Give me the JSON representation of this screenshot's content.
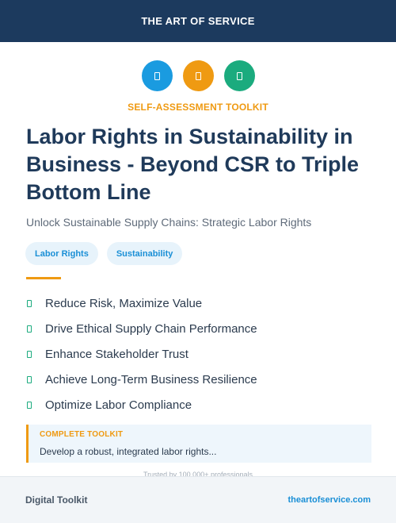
{
  "header": {
    "brand": "THE ART OF SERVICE"
  },
  "icons": [
    {
      "name": "document-icon",
      "color": "#1a9be0"
    },
    {
      "name": "document-icon",
      "color": "#ef9a12"
    },
    {
      "name": "document-icon",
      "color": "#1bab7e"
    }
  ],
  "kicker": "SELF-ASSESSMENT TOOLKIT",
  "title": "Labor Rights in Sustainability in Business - Beyond CSR to Triple Bottom Line",
  "subtitle": "Unlock Sustainable Supply Chains: Strategic Labor Rights",
  "tags": [
    "Labor Rights",
    "Sustainability"
  ],
  "benefits": [
    "Reduce Risk, Maximize Value",
    "Drive Ethical Supply Chain Performance",
    "Enhance Stakeholder Trust",
    "Achieve Long-Term Business Resilience",
    "Optimize Labor Compliance"
  ],
  "callout": {
    "label": "COMPLETE TOOLKIT",
    "text": "Develop a robust, integrated labor rights..."
  },
  "trusted": "Trusted by 100,000+ professionals",
  "footer": {
    "left": "Digital Toolkit",
    "right": "theartofservice.com"
  },
  "colors": {
    "navy": "#1c3a5e",
    "orange": "#ef9a12",
    "blue": "#1a9be0",
    "green": "#1bab7e"
  }
}
